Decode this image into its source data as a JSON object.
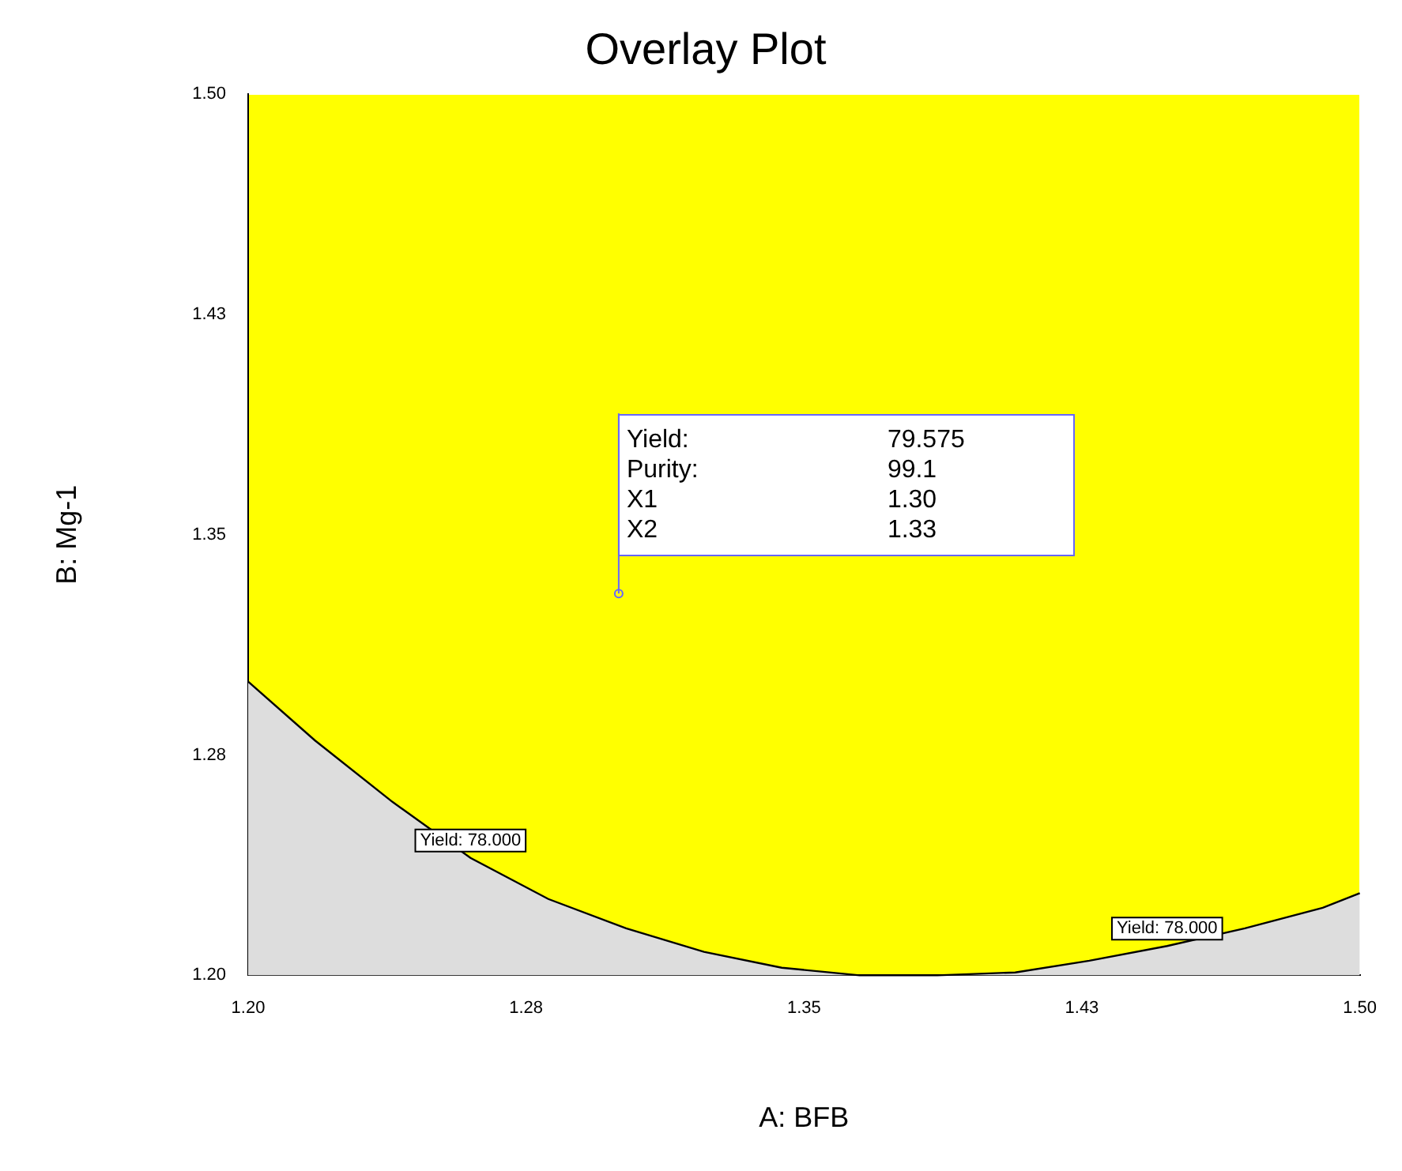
{
  "chart_data": {
    "type": "area",
    "title": "Overlay Plot",
    "xlabel": "A: BFB",
    "ylabel": "B: Mg-1",
    "x": [
      1.2,
      1.218,
      1.239,
      1.26,
      1.281,
      1.302,
      1.323,
      1.344,
      1.365,
      1.386,
      1.407,
      1.427,
      1.448,
      1.469,
      1.49,
      1.5
    ],
    "series": [
      {
        "color": "#dddddd",
        "values": [
          1.3,
          1.28,
          1.259,
          1.24,
          1.226,
          1.216,
          1.208,
          1.2026,
          1.2,
          1.2,
          1.201,
          1.205,
          1.21,
          1.216,
          1.223,
          1.228
        ]
      },
      {
        "type": "scatter",
        "marker": "circle",
        "color": "#6666ff",
        "x": [
          1.3
        ],
        "values": [
          1.33
        ]
      }
    ],
    "xlim": [
      1.2,
      1.5
    ],
    "ylim": [
      1.2,
      1.5
    ],
    "xticks": [
      {
        "value": 1.2,
        "label": "1.20"
      },
      {
        "value": 1.275,
        "label": "1.28"
      },
      {
        "value": 1.35,
        "label": "1.35"
      },
      {
        "value": 1.425,
        "label": "1.43"
      },
      {
        "value": 1.5,
        "label": "1.50"
      }
    ],
    "yticks": [
      {
        "value": 1.2,
        "label": "1.20"
      },
      {
        "value": 1.275,
        "label": "1.28"
      },
      {
        "value": 1.35,
        "label": "1.35"
      },
      {
        "value": 1.425,
        "label": "1.43"
      },
      {
        "value": 1.5,
        "label": "1.50"
      }
    ],
    "annotations": [
      {
        "text": "Yield: 78.000",
        "x": 1.26,
        "y": 1.24
      },
      {
        "text": "Yield: 78.000",
        "x": 1.448,
        "y": 1.21
      },
      {
        "text": "Yield:",
        "x": 1.3,
        "y": 1.33
      },
      "79.575",
      "Purity:",
      "99.1",
      "X1",
      "1.30",
      "X2",
      "1.33"
    ],
    "grid": false,
    "legend": false
  }
}
